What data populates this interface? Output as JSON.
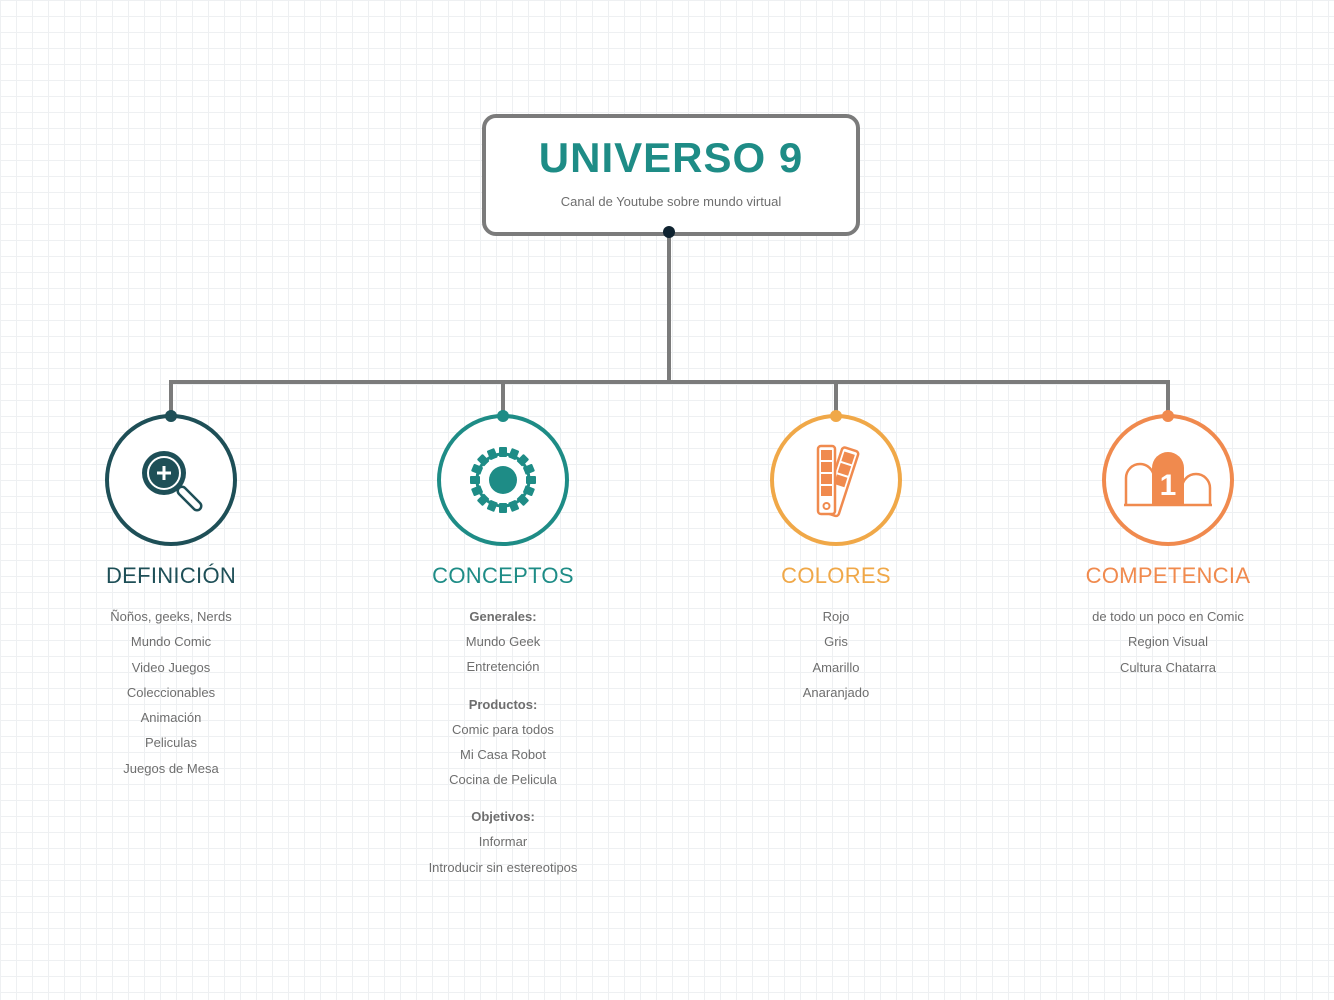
{
  "root": {
    "title": "UNIVERSO 9",
    "subtitle": "Canal de Youtube sobre mundo virtual"
  },
  "colors": {
    "line": "#7b7b7b",
    "root_dot": "#0f2330",
    "definicion": "#1e4f57",
    "conceptos": "#1e8c86",
    "colores": "#f0a848",
    "competencia": "#f08a4e"
  },
  "branches": {
    "definicion": {
      "title": "DEFINICIÓN",
      "icon": "magnifier-plus-icon",
      "items": [
        "Ñoños, geeks, Nerds",
        "Mundo Comic",
        "Video Juegos",
        "Coleccionables",
        "Animación",
        "Peliculas",
        "Juegos de Mesa"
      ]
    },
    "conceptos": {
      "title": "CONCEPTOS",
      "icon": "gear-icon",
      "groups": [
        {
          "heading": "Generales:",
          "items": [
            "Mundo Geek",
            "Entretención"
          ]
        },
        {
          "heading": "Productos:",
          "items": [
            "Comic para todos",
            "Mi Casa Robot",
            "Cocina de Pelicula"
          ]
        },
        {
          "heading": "Objetivos:",
          "items": [
            "Informar",
            "Introducir sin estereotipos"
          ]
        }
      ]
    },
    "colores": {
      "title": "COLORES",
      "icon": "color-swatch-icon",
      "items": [
        "Rojo",
        "Gris",
        "Amarillo",
        "Anaranjado"
      ]
    },
    "competencia": {
      "title": "COMPETENCIA",
      "icon": "podium-icon",
      "podium_label": "1",
      "items": [
        "de todo un poco en Comic",
        "Region Visual",
        "Cultura Chatarra"
      ]
    }
  }
}
